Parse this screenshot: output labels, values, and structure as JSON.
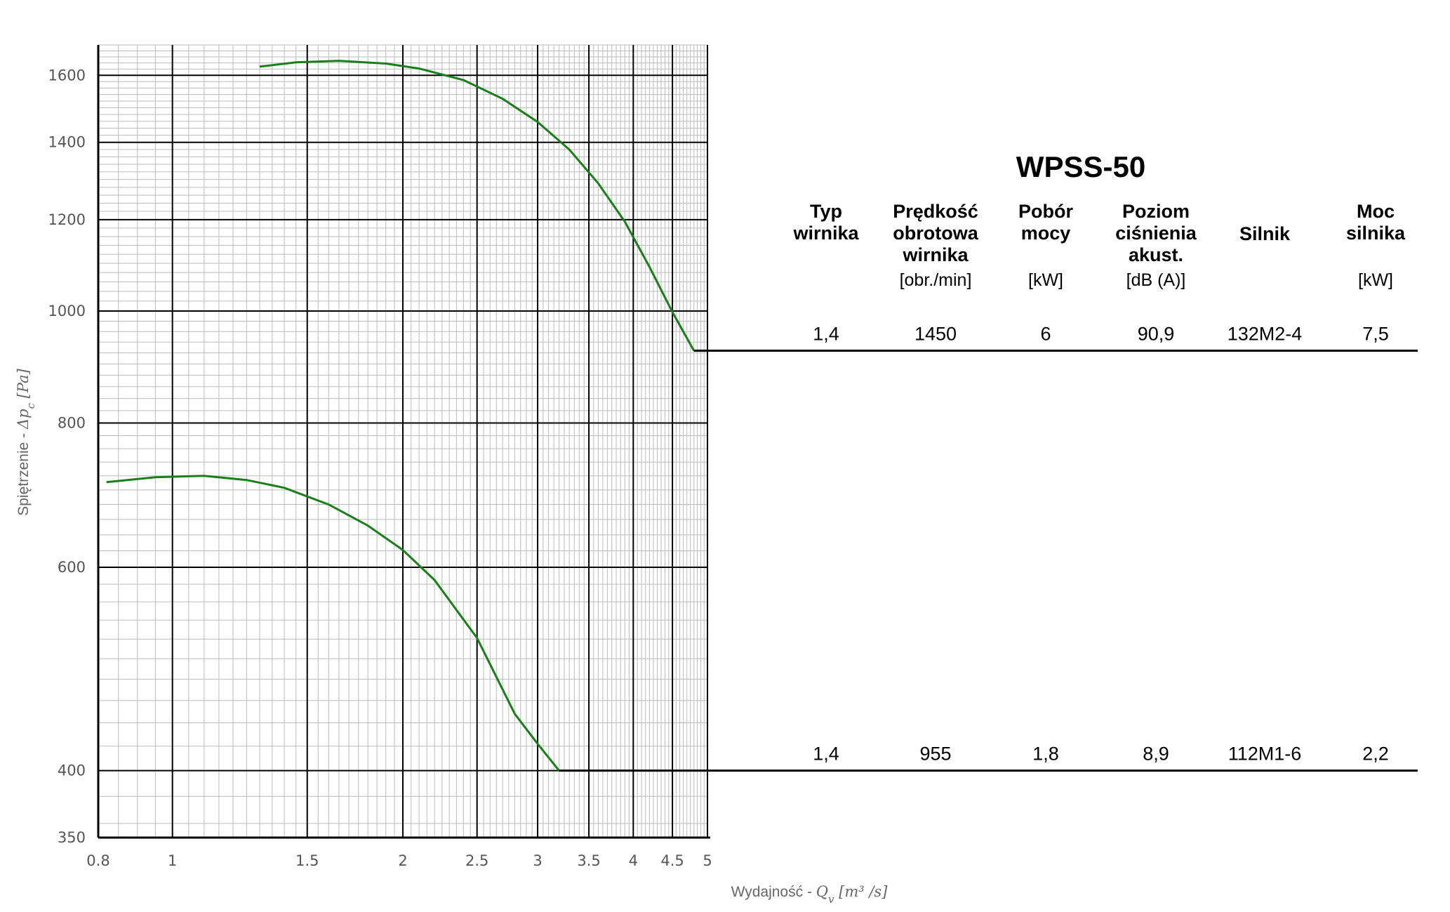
{
  "chart_data": {
    "type": "line",
    "title": "WPSS-50",
    "xlabel": {
      "text": "Wydajność - ",
      "symbol": "Q",
      "sub": "v",
      "unit": " [m³ /s]"
    },
    "ylabel": {
      "text": "Spiętrzenie - ",
      "symbol": "Δp",
      "sub": "c",
      "unit": " [Pa]"
    },
    "x_scale": "log",
    "y_scale": "log",
    "xlim": [
      0.8,
      5
    ],
    "ylim": [
      350,
      1700
    ],
    "x_ticks": [
      "0.8",
      "1",
      "1.5",
      "2",
      "2.5",
      "3",
      "3.5",
      "4",
      "4.5",
      "5"
    ],
    "y_ticks": [
      "350",
      "400",
      "600",
      "800",
      "1000",
      "1200",
      "1400",
      "1600"
    ],
    "grid": true,
    "colors": {
      "curve": "#1a7f1a",
      "axis": "#000000",
      "minor_grid": "#bbbbbb"
    },
    "series": [
      {
        "x": [
          1.3,
          1.45,
          1.65,
          1.9,
          2.1,
          2.4,
          2.7,
          3.0,
          3.3,
          3.6,
          3.9,
          4.2,
          4.5,
          4.8
        ],
        "y": [
          1628,
          1642,
          1647,
          1638,
          1622,
          1585,
          1527,
          1458,
          1380,
          1290,
          1195,
          1092,
          998,
          924
        ],
        "extends_to_table": true
      },
      {
        "x": [
          0.82,
          0.95,
          1.1,
          1.25,
          1.4,
          1.6,
          1.8,
          2.0,
          2.2,
          2.5,
          2.8,
          3.0,
          3.2
        ],
        "y": [
          711,
          718,
          720,
          714,
          703,
          680,
          652,
          621,
          585,
          521,
          448,
          422,
          400
        ],
        "extends_to_table": true
      }
    ],
    "horizontal_levels": [
      924,
      400
    ]
  },
  "table": {
    "headers": [
      {
        "lines": [
          "Typ",
          "wirnika"
        ],
        "unit": ""
      },
      {
        "lines": [
          "Prędkość",
          "obrotowa",
          "wirnika"
        ],
        "unit": "[obr./min]"
      },
      {
        "lines": [
          "Pobór",
          "mocy"
        ],
        "unit": "[kW]"
      },
      {
        "lines": [
          "Poziom",
          "ciśnienia",
          "akust."
        ],
        "unit": "[dB (A)]"
      },
      {
        "lines": [
          "Silnik"
        ],
        "unit": ""
      },
      {
        "lines": [
          "Moc",
          "silnika"
        ],
        "unit": "[kW]"
      }
    ],
    "rows": [
      {
        "values": [
          "1,4",
          "1450",
          "6",
          "90,9",
          "132M2-4",
          "7,5"
        ]
      },
      {
        "values": [
          "1,4",
          "955",
          "1,8",
          "8,9",
          "112M1-6",
          "2,2"
        ]
      }
    ]
  }
}
